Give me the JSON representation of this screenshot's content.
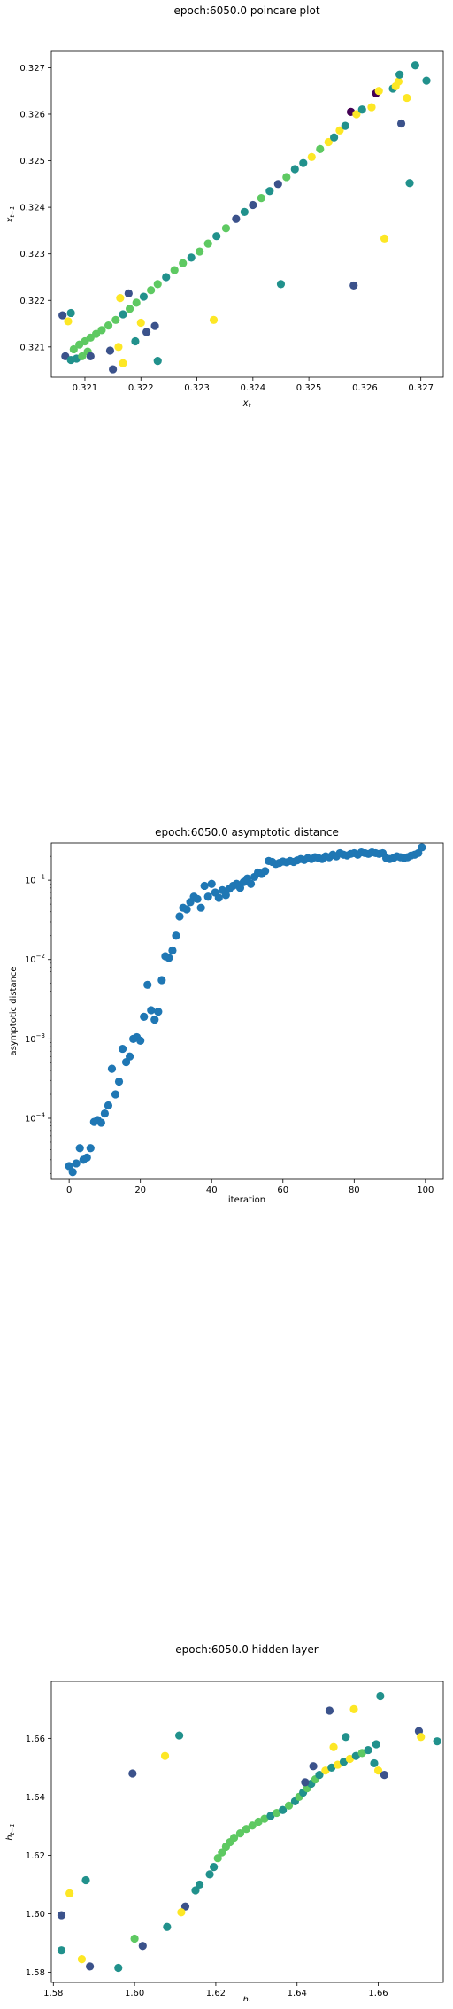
{
  "palette": [
    "#440154",
    "#3b528b",
    "#21918c",
    "#5ec962",
    "#fde725"
  ],
  "chart_data": [
    {
      "type": "scatter",
      "title": "epoch:6050.0 poincare plot",
      "xlabel": "x_t",
      "ylabel": "x_{t-1}",
      "xlim": [
        0.3204,
        0.3274
      ],
      "ylim": [
        0.32035,
        0.32735
      ],
      "xticks": [
        0.321,
        0.322,
        0.323,
        0.324,
        0.325,
        0.326,
        0.327
      ],
      "yticks": [
        0.321,
        0.322,
        0.323,
        0.324,
        0.325,
        0.326,
        0.327
      ],
      "grid": false,
      "legend": "none",
      "points": [
        {
          "x": 0.32065,
          "y": 0.3208,
          "c": 0.15
        },
        {
          "x": 0.32075,
          "y": 0.32072,
          "c": 0.4
        },
        {
          "x": 0.32085,
          "y": 0.32075,
          "c": 0.6
        },
        {
          "x": 0.32095,
          "y": 0.3208,
          "c": 0.7
        },
        {
          "x": 0.32105,
          "y": 0.3209,
          "c": 0.8
        },
        {
          "x": 0.3208,
          "y": 0.32095,
          "c": 0.75
        },
        {
          "x": 0.3209,
          "y": 0.32105,
          "c": 0.75
        },
        {
          "x": 0.321,
          "y": 0.32112,
          "c": 0.75
        },
        {
          "x": 0.3211,
          "y": 0.3212,
          "c": 0.75
        },
        {
          "x": 0.3212,
          "y": 0.32128,
          "c": 0.75
        },
        {
          "x": 0.3213,
          "y": 0.32136,
          "c": 0.75
        },
        {
          "x": 0.32142,
          "y": 0.32146,
          "c": 0.75
        },
        {
          "x": 0.32155,
          "y": 0.32158,
          "c": 0.75
        },
        {
          "x": 0.32168,
          "y": 0.3217,
          "c": 0.5
        },
        {
          "x": 0.3218,
          "y": 0.32182,
          "c": 0.75
        },
        {
          "x": 0.32192,
          "y": 0.32195,
          "c": 0.75
        },
        {
          "x": 0.32205,
          "y": 0.32208,
          "c": 0.6
        },
        {
          "x": 0.32218,
          "y": 0.32222,
          "c": 0.75
        },
        {
          "x": 0.3223,
          "y": 0.32235,
          "c": 0.75
        },
        {
          "x": 0.32245,
          "y": 0.3225,
          "c": 0.6
        },
        {
          "x": 0.3226,
          "y": 0.32265,
          "c": 0.75
        },
        {
          "x": 0.32275,
          "y": 0.3228,
          "c": 0.75
        },
        {
          "x": 0.3229,
          "y": 0.32292,
          "c": 0.5
        },
        {
          "x": 0.32305,
          "y": 0.32305,
          "c": 0.75
        },
        {
          "x": 0.3232,
          "y": 0.32322,
          "c": 0.75
        },
        {
          "x": 0.32335,
          "y": 0.32338,
          "c": 0.6
        },
        {
          "x": 0.32352,
          "y": 0.32355,
          "c": 0.75
        },
        {
          "x": 0.3237,
          "y": 0.32375,
          "c": 0.25
        },
        {
          "x": 0.32385,
          "y": 0.3239,
          "c": 0.6
        },
        {
          "x": 0.324,
          "y": 0.32405,
          "c": 0.25
        },
        {
          "x": 0.32415,
          "y": 0.3242,
          "c": 0.75
        },
        {
          "x": 0.3243,
          "y": 0.32435,
          "c": 0.6
        },
        {
          "x": 0.32445,
          "y": 0.3245,
          "c": 0.25
        },
        {
          "x": 0.3246,
          "y": 0.32465,
          "c": 0.75
        },
        {
          "x": 0.32475,
          "y": 0.32482,
          "c": 0.5
        },
        {
          "x": 0.3249,
          "y": 0.32495,
          "c": 0.6
        },
        {
          "x": 0.32505,
          "y": 0.32508,
          "c": 0.95
        },
        {
          "x": 0.3252,
          "y": 0.32525,
          "c": 0.75
        },
        {
          "x": 0.32535,
          "y": 0.3254,
          "c": 0.95
        },
        {
          "x": 0.32545,
          "y": 0.3255,
          "c": 0.6
        },
        {
          "x": 0.32555,
          "y": 0.32565,
          "c": 0.95
        },
        {
          "x": 0.32565,
          "y": 0.32575,
          "c": 0.6
        },
        {
          "x": 0.32575,
          "y": 0.32605,
          "c": 0.1
        },
        {
          "x": 0.32585,
          "y": 0.326,
          "c": 0.95
        },
        {
          "x": 0.32595,
          "y": 0.3261,
          "c": 0.5
        },
        {
          "x": 0.32612,
          "y": 0.32615,
          "c": 0.9
        },
        {
          "x": 0.3262,
          "y": 0.32645,
          "c": 0.1
        },
        {
          "x": 0.32625,
          "y": 0.3265,
          "c": 0.95
        },
        {
          "x": 0.3265,
          "y": 0.32655,
          "c": 0.5
        },
        {
          "x": 0.32655,
          "y": 0.3266,
          "c": 0.95
        },
        {
          "x": 0.3266,
          "y": 0.3267,
          "c": 0.9
        },
        {
          "x": 0.32662,
          "y": 0.32685,
          "c": 0.5
        },
        {
          "x": 0.32665,
          "y": 0.3258,
          "c": 0.25
        },
        {
          "x": 0.32675,
          "y": 0.32635,
          "c": 0.95
        },
        {
          "x": 0.3268,
          "y": 0.32452,
          "c": 0.5
        },
        {
          "x": 0.3269,
          "y": 0.32705,
          "c": 0.55
        },
        {
          "x": 0.3271,
          "y": 0.32672,
          "c": 0.5
        },
        {
          "x": 0.32635,
          "y": 0.32333,
          "c": 0.95
        },
        {
          "x": 0.3258,
          "y": 0.32232,
          "c": 0.25
        },
        {
          "x": 0.3245,
          "y": 0.32235,
          "c": 0.55
        },
        {
          "x": 0.3233,
          "y": 0.32158,
          "c": 0.95
        },
        {
          "x": 0.3223,
          "y": 0.3207,
          "c": 0.55
        },
        {
          "x": 0.32225,
          "y": 0.32145,
          "c": 0.25
        },
        {
          "x": 0.3221,
          "y": 0.32132,
          "c": 0.35
        },
        {
          "x": 0.322,
          "y": 0.32152,
          "c": 0.95
        },
        {
          "x": 0.3219,
          "y": 0.32112,
          "c": 0.55
        },
        {
          "x": 0.32178,
          "y": 0.32215,
          "c": 0.15
        },
        {
          "x": 0.32168,
          "y": 0.32065,
          "c": 0.95
        },
        {
          "x": 0.3216,
          "y": 0.321,
          "c": 0.9
        },
        {
          "x": 0.32163,
          "y": 0.32205,
          "c": 0.9
        },
        {
          "x": 0.3215,
          "y": 0.32052,
          "c": 0.25
        },
        {
          "x": 0.32145,
          "y": 0.32092,
          "c": 0.25
        },
        {
          "x": 0.3206,
          "y": 0.32168,
          "c": 0.15
        },
        {
          "x": 0.3207,
          "y": 0.32155,
          "c": 0.9
        },
        {
          "x": 0.32075,
          "y": 0.32173,
          "c": 0.5
        },
        {
          "x": 0.3211,
          "y": 0.3208,
          "c": 0.2
        }
      ]
    },
    {
      "type": "scatter",
      "title": "epoch:6050.0 asymptotic distance",
      "xlabel": "iteration",
      "ylabel": "asymptotic distance",
      "yscale": "log",
      "xlim": [
        -5,
        105
      ],
      "ylim_log10": [
        -4.77,
        -0.53
      ],
      "xticks": [
        0,
        20,
        40,
        60,
        80,
        100
      ],
      "ytick_exponents": [
        -4,
        -3,
        -2,
        -1
      ],
      "grid": false,
      "legend": "none",
      "color": "#1f77b4",
      "y": [
        2.5e-05,
        2.1e-05,
        2.7e-05,
        4.2e-05,
        3e-05,
        3.2e-05,
        4.2e-05,
        9e-05,
        9.5e-05,
        8.8e-05,
        0.000115,
        0.000145,
        0.00042,
        0.0002,
        0.00029,
        0.00075,
        0.00051,
        0.0006,
        0.001,
        0.00105,
        0.00095,
        0.0019,
        0.0048,
        0.0023,
        0.00175,
        0.0022,
        0.0055,
        0.011,
        0.0105,
        0.013,
        0.02,
        0.035,
        0.045,
        0.043,
        0.053,
        0.062,
        0.058,
        0.045,
        0.085,
        0.062,
        0.09,
        0.07,
        0.06,
        0.075,
        0.065,
        0.078,
        0.085,
        0.09,
        0.08,
        0.095,
        0.105,
        0.09,
        0.11,
        0.125,
        0.12,
        0.13,
        0.175,
        0.17,
        0.16,
        0.165,
        0.172,
        0.168,
        0.175,
        0.17,
        0.178,
        0.185,
        0.18,
        0.19,
        0.185,
        0.195,
        0.19,
        0.185,
        0.2,
        0.195,
        0.21,
        0.2,
        0.22,
        0.21,
        0.205,
        0.215,
        0.22,
        0.21,
        0.225,
        0.22,
        0.215,
        0.225,
        0.22,
        0.215,
        0.22,
        0.19,
        0.185,
        0.19,
        0.2,
        0.195,
        0.19,
        0.195,
        0.205,
        0.21,
        0.22,
        0.26
      ]
    },
    {
      "type": "scatter",
      "title": "epoch:6050.0 hidden layer",
      "xlabel": "h_t",
      "ylabel": "h_{t-1}",
      "xlim": [
        1.5795,
        1.676
      ],
      "ylim": [
        1.5765,
        1.6795
      ],
      "xticks": [
        1.58,
        1.6,
        1.62,
        1.64,
        1.66
      ],
      "yticks": [
        1.58,
        1.6,
        1.62,
        1.64,
        1.66
      ],
      "grid": false,
      "legend": "none",
      "points": [
        {
          "x": 1.6185,
          "y": 1.6135,
          "c": 0.5
        },
        {
          "x": 1.6195,
          "y": 1.616,
          "c": 0.6
        },
        {
          "x": 1.6205,
          "y": 1.619,
          "c": 0.75
        },
        {
          "x": 1.6215,
          "y": 1.621,
          "c": 0.75
        },
        {
          "x": 1.6225,
          "y": 1.623,
          "c": 0.75
        },
        {
          "x": 1.6235,
          "y": 1.6245,
          "c": 0.75
        },
        {
          "x": 1.6245,
          "y": 1.626,
          "c": 0.75
        },
        {
          "x": 1.626,
          "y": 1.6275,
          "c": 0.75
        },
        {
          "x": 1.6275,
          "y": 1.629,
          "c": 0.75
        },
        {
          "x": 1.629,
          "y": 1.6302,
          "c": 0.75
        },
        {
          "x": 1.6305,
          "y": 1.6315,
          "c": 0.75
        },
        {
          "x": 1.632,
          "y": 1.6325,
          "c": 0.75
        },
        {
          "x": 1.6335,
          "y": 1.6335,
          "c": 0.6
        },
        {
          "x": 1.635,
          "y": 1.6345,
          "c": 0.75
        },
        {
          "x": 1.6365,
          "y": 1.6355,
          "c": 0.6
        },
        {
          "x": 1.638,
          "y": 1.637,
          "c": 0.75
        },
        {
          "x": 1.6395,
          "y": 1.6385,
          "c": 0.6
        },
        {
          "x": 1.6405,
          "y": 1.64,
          "c": 0.75
        },
        {
          "x": 1.6415,
          "y": 1.6415,
          "c": 0.5
        },
        {
          "x": 1.6425,
          "y": 1.643,
          "c": 0.75
        },
        {
          "x": 1.6435,
          "y": 1.6445,
          "c": 0.5
        },
        {
          "x": 1.6445,
          "y": 1.646,
          "c": 0.75
        },
        {
          "x": 1.6455,
          "y": 1.6475,
          "c": 0.6
        },
        {
          "x": 1.647,
          "y": 1.649,
          "c": 0.95
        },
        {
          "x": 1.6485,
          "y": 1.65,
          "c": 0.5
        },
        {
          "x": 1.65,
          "y": 1.651,
          "c": 0.95
        },
        {
          "x": 1.6515,
          "y": 1.652,
          "c": 0.6
        },
        {
          "x": 1.653,
          "y": 1.653,
          "c": 0.95
        },
        {
          "x": 1.6545,
          "y": 1.654,
          "c": 0.5
        },
        {
          "x": 1.656,
          "y": 1.655,
          "c": 0.75
        },
        {
          "x": 1.6575,
          "y": 1.656,
          "c": 0.5
        },
        {
          "x": 1.616,
          "y": 1.61,
          "c": 0.6
        },
        {
          "x": 1.615,
          "y": 1.608,
          "c": 0.4
        },
        {
          "x": 1.6125,
          "y": 1.6025,
          "c": 0.15
        },
        {
          "x": 1.6115,
          "y": 1.6005,
          "c": 0.9
        },
        {
          "x": 1.608,
          "y": 1.5955,
          "c": 0.5
        },
        {
          "x": 1.6,
          "y": 1.5915,
          "c": 0.85
        },
        {
          "x": 1.602,
          "y": 1.589,
          "c": 0.25
        },
        {
          "x": 1.596,
          "y": 1.5815,
          "c": 0.5
        },
        {
          "x": 1.589,
          "y": 1.582,
          "c": 0.15
        },
        {
          "x": 1.587,
          "y": 1.5845,
          "c": 0.9
        },
        {
          "x": 1.582,
          "y": 1.5875,
          "c": 0.5
        },
        {
          "x": 1.582,
          "y": 1.5995,
          "c": 0.15
        },
        {
          "x": 1.584,
          "y": 1.607,
          "c": 0.9
        },
        {
          "x": 1.588,
          "y": 1.6115,
          "c": 0.5
        },
        {
          "x": 1.5995,
          "y": 1.648,
          "c": 0.15
        },
        {
          "x": 1.6075,
          "y": 1.654,
          "c": 0.95
        },
        {
          "x": 1.611,
          "y": 1.661,
          "c": 0.5
        },
        {
          "x": 1.642,
          "y": 1.645,
          "c": 0.15
        },
        {
          "x": 1.644,
          "y": 1.6505,
          "c": 0.25
        },
        {
          "x": 1.648,
          "y": 1.6695,
          "c": 0.15
        },
        {
          "x": 1.649,
          "y": 1.657,
          "c": 0.95
        },
        {
          "x": 1.652,
          "y": 1.6605,
          "c": 0.5
        },
        {
          "x": 1.654,
          "y": 1.67,
          "c": 0.95
        },
        {
          "x": 1.659,
          "y": 1.6515,
          "c": 0.5
        },
        {
          "x": 1.6595,
          "y": 1.658,
          "c": 0.5
        },
        {
          "x": 1.66,
          "y": 1.649,
          "c": 0.95
        },
        {
          "x": 1.6605,
          "y": 1.6745,
          "c": 0.5
        },
        {
          "x": 1.6615,
          "y": 1.6475,
          "c": 0.25
        },
        {
          "x": 1.67,
          "y": 1.6625,
          "c": 0.15
        },
        {
          "x": 1.6705,
          "y": 1.6605,
          "c": 0.95
        },
        {
          "x": 1.6745,
          "y": 1.659,
          "c": 0.5
        }
      ]
    }
  ]
}
